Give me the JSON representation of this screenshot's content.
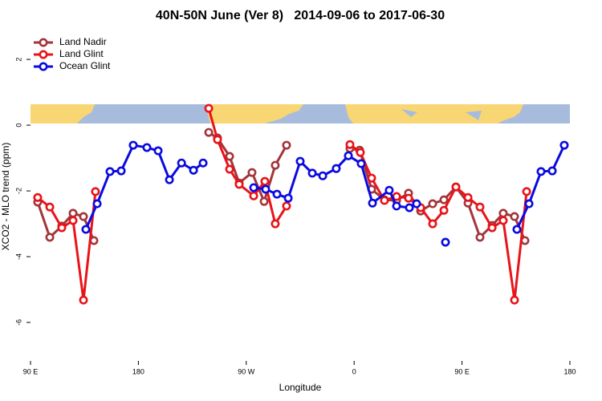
{
  "chart_data": {
    "type": "line",
    "title": "40N-50N June (Ver 8)   2014-09-06 to 2017-06-30",
    "xlabel": "Longitude",
    "ylabel": "XCO2 - MLO trend (ppm)",
    "xlim": [
      90,
      540
    ],
    "ylim": [
      -7.17,
      2.88
    ],
    "xticks": [
      {
        "value": 90,
        "label": "90 E"
      },
      180,
      {
        "value": 270,
        "label": "90 W"
      },
      {
        "value": 360,
        "label": "0"
      },
      {
        "value": 450,
        "label": "90 E"
      },
      {
        "value": 540,
        "label": "180"
      }
    ],
    "yticks": [
      -6,
      -4,
      -2,
      0,
      2
    ],
    "legend": "top-left",
    "series": [
      {
        "name": "Land Nadir",
        "color": "#a3353a",
        "x": [
          96,
          106.1,
          116.1,
          125.5,
          134.2,
          142.9,
          null,
          238.7,
          246,
          256.1,
          264.1,
          274.8,
          284.9,
          294.2,
          303.6,
          null,
          356.5,
          364.6,
          374.6,
          385.3,
          395.4,
          405.4,
          415.5,
          425.5,
          434.9,
          444.9,
          455,
          465,
          475.1,
          484.4,
          493.8,
          502.5
        ],
        "values": [
          -2.34,
          -3.41,
          -3.07,
          -2.68,
          -2.78,
          -3.51,
          null,
          -0.22,
          -0.39,
          -0.95,
          -1.76,
          -1.44,
          -2.32,
          -1.22,
          -0.61,
          null,
          -0.71,
          -0.76,
          -1.95,
          -2.27,
          -2.29,
          -2.07,
          -2.61,
          -2.39,
          -2.27,
          -1.88,
          -2.37,
          -3.41,
          -3.05,
          -2.68,
          -2.78,
          -3.51
        ]
      },
      {
        "name": "Land Glint",
        "color": "#e8141a",
        "x": [
          96,
          106.1,
          116.1,
          125.5,
          134.2,
          144.2,
          null,
          238.7,
          246,
          256.1,
          264.1,
          276.2,
          285.5,
          294.2,
          303.6,
          null,
          356.5,
          365.2,
          374.6,
          385.3,
          395.4,
          405.4,
          415.5,
          425.5,
          434.9,
          444.9,
          455,
          465,
          475.1,
          484.4,
          493.8,
          503.9
        ],
        "values": [
          -2.2,
          -2.49,
          -3.12,
          -2.9,
          -5.32,
          -2.02,
          null,
          0.51,
          -0.44,
          -1.34,
          -1.8,
          -2.15,
          -1.71,
          -3,
          -2.46,
          null,
          -0.59,
          -0.83,
          -1.61,
          -2.29,
          -2.17,
          -2.22,
          -2.51,
          -3,
          -2.59,
          -1.88,
          -2.2,
          -2.49,
          -3.12,
          -2.9,
          -5.32,
          -2.02
        ]
      },
      {
        "name": "Ocean Glint",
        "color": "#0a0ae0",
        "x": [
          136.2,
          145.6,
          156.3,
          165.7,
          175.7,
          187.1,
          196.5,
          205.9,
          216,
          226,
          234,
          null,
          276.2,
          286.2,
          295.6,
          305,
          315,
          325.1,
          333.8,
          345.1,
          355.2,
          365.9,
          375.3,
          389.3,
          395.4,
          406.1,
          412.1,
          null,
          436.2,
          null,
          495.8,
          505.9,
          515.9,
          525.3,
          535.3
        ],
        "values": [
          -3.17,
          -2.39,
          -1.41,
          -1.39,
          -0.61,
          -0.68,
          -0.78,
          -1.66,
          -1.15,
          -1.37,
          -1.15,
          null,
          -1.9,
          -1.95,
          -2.1,
          -2.22,
          -1.1,
          -1.46,
          -1.54,
          -1.32,
          -0.93,
          -1.17,
          -2.37,
          -1.98,
          -2.46,
          -2.51,
          -2.39,
          null,
          -3.56,
          null,
          -3.17,
          -2.39,
          -1.41,
          -1.39,
          -0.61
        ]
      }
    ]
  }
}
